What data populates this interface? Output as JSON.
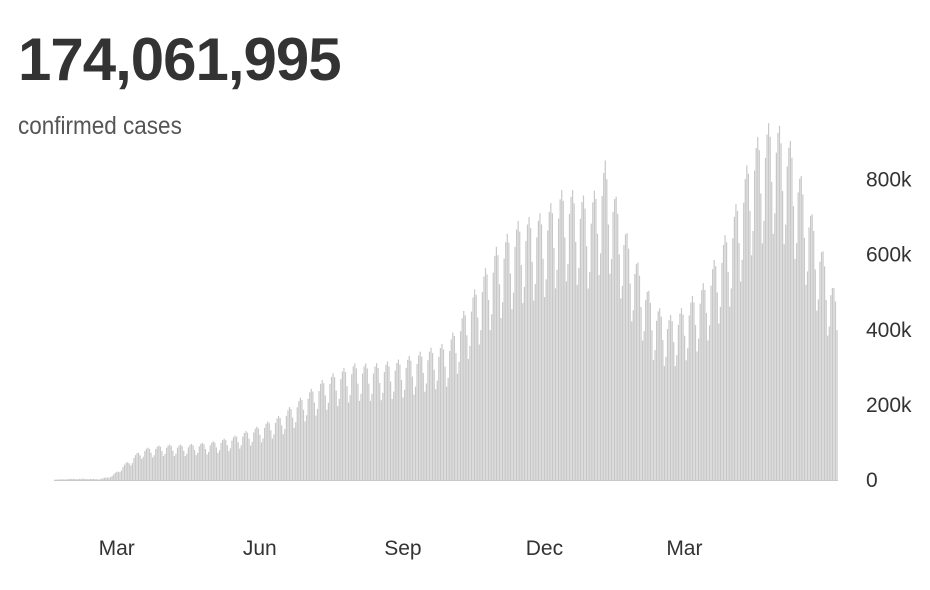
{
  "header": {
    "total": "174,061,995",
    "subtitle": "confirmed cases"
  },
  "colors": {
    "bar": "#c8c8c8",
    "text": "#333333"
  },
  "chart_data": {
    "type": "bar",
    "title": "174,061,995",
    "subtitle": "confirmed cases",
    "x_start": "2020-01-22",
    "x_end": "2021-06-08",
    "y_ticks": [
      {
        "value": 0,
        "label": "0"
      },
      {
        "value": 200000,
        "label": "200k"
      },
      {
        "value": 400000,
        "label": "400k"
      },
      {
        "value": 600000,
        "label": "600k"
      },
      {
        "value": 800000,
        "label": "800k"
      }
    ],
    "x_ticks": [
      {
        "date": "2020-03-01",
        "label": "Mar"
      },
      {
        "date": "2020-06-01",
        "label": "Jun"
      },
      {
        "date": "2020-09-01",
        "label": "Sep"
      },
      {
        "date": "2020-12-01",
        "label": "Dec"
      },
      {
        "date": "2021-03-01",
        "label": "Mar"
      }
    ],
    "ylim": [
      0,
      900000
    ],
    "grid": false,
    "weekly_trend": [
      {
        "date": "2020-01-22",
        "value": 1000
      },
      {
        "date": "2020-02-01",
        "value": 2500
      },
      {
        "date": "2020-02-10",
        "value": 3000
      },
      {
        "date": "2020-02-20",
        "value": 2000
      },
      {
        "date": "2020-02-28",
        "value": 10000
      },
      {
        "date": "2020-03-08",
        "value": 40000
      },
      {
        "date": "2020-03-18",
        "value": 72000
      },
      {
        "date": "2020-04-01",
        "value": 82000
      },
      {
        "date": "2020-04-15",
        "value": 82000
      },
      {
        "date": "2020-05-01",
        "value": 88000
      },
      {
        "date": "2020-05-15",
        "value": 100000
      },
      {
        "date": "2020-06-01",
        "value": 125000
      },
      {
        "date": "2020-06-15",
        "value": 150000
      },
      {
        "date": "2020-07-01",
        "value": 200000
      },
      {
        "date": "2020-07-15",
        "value": 240000
      },
      {
        "date": "2020-08-01",
        "value": 270000
      },
      {
        "date": "2020-08-15",
        "value": 270000
      },
      {
        "date": "2020-09-01",
        "value": 280000
      },
      {
        "date": "2020-09-15",
        "value": 300000
      },
      {
        "date": "2020-10-01",
        "value": 320000
      },
      {
        "date": "2020-10-15",
        "value": 420000
      },
      {
        "date": "2020-11-01",
        "value": 540000
      },
      {
        "date": "2020-11-15",
        "value": 600000
      },
      {
        "date": "2020-12-01",
        "value": 620000
      },
      {
        "date": "2020-12-15",
        "value": 680000
      },
      {
        "date": "2021-01-01",
        "value": 650000
      },
      {
        "date": "2021-01-10",
        "value": 740000
      },
      {
        "date": "2021-01-25",
        "value": 560000
      },
      {
        "date": "2021-02-10",
        "value": 410000
      },
      {
        "date": "2021-02-20",
        "value": 380000
      },
      {
        "date": "2021-03-01",
        "value": 400000
      },
      {
        "date": "2021-03-15",
        "value": 460000
      },
      {
        "date": "2021-04-01",
        "value": 600000
      },
      {
        "date": "2021-04-15",
        "value": 780000
      },
      {
        "date": "2021-04-28",
        "value": 840000
      },
      {
        "date": "2021-05-10",
        "value": 780000
      },
      {
        "date": "2021-05-25",
        "value": 590000
      },
      {
        "date": "2021-06-08",
        "value": 420000
      }
    ]
  }
}
